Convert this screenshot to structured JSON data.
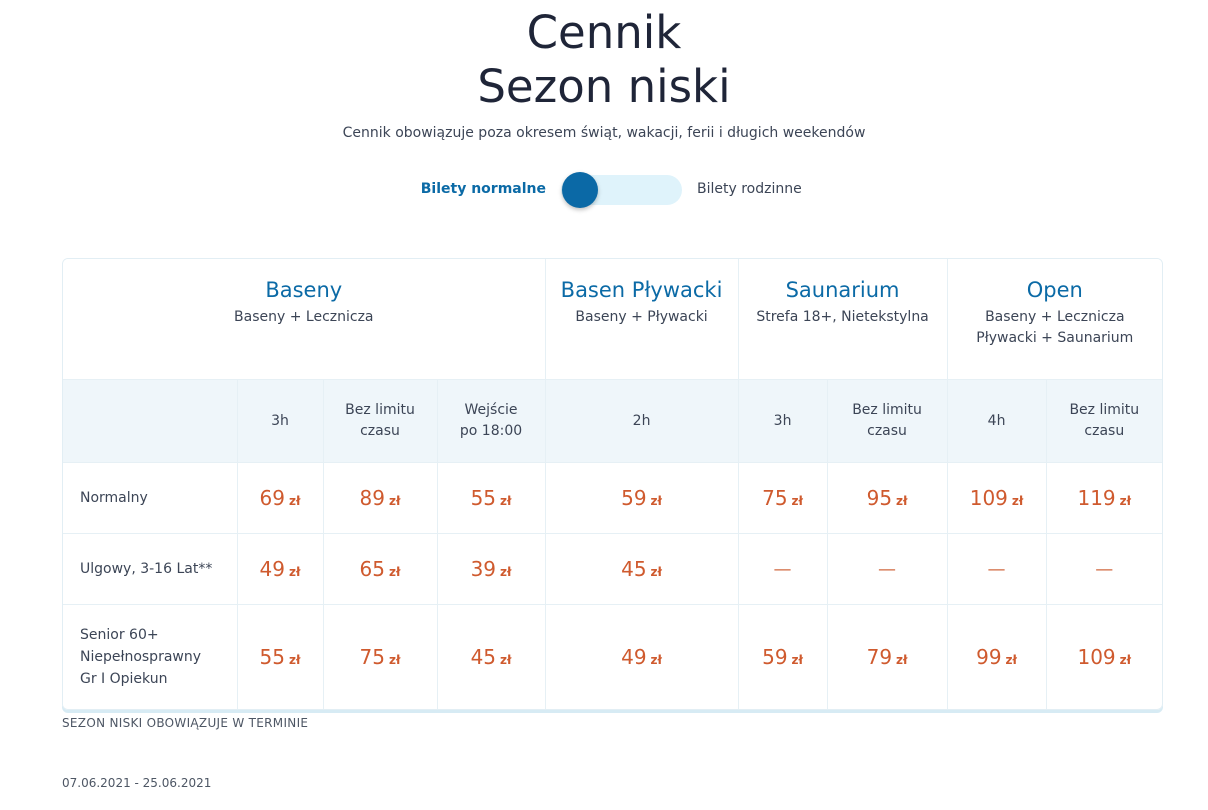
{
  "header": {
    "title_line1": "Cennik",
    "title_line2": "Sezon niski",
    "subtitle": "Cennik obowiązuje poza okresem świąt, wakacji, ferii i długich weekendów"
  },
  "toggle": {
    "left_label": "Bilety normalne",
    "right_label": "Bilety rodzinne",
    "state": "normalne"
  },
  "groups": [
    {
      "title": "Baseny",
      "sub1": "Baseny + Lecznicza",
      "sub2": ""
    },
    {
      "title": "Basen Pływacki",
      "sub1": "Baseny + Pływacki",
      "sub2": ""
    },
    {
      "title": "Saunarium",
      "sub1": "Strefa 18+, Nietekstylna",
      "sub2": ""
    },
    {
      "title": "Open",
      "sub1": "Baseny + Lecznicza",
      "sub2": "Pływacki + Saunarium"
    }
  ],
  "durations": [
    {
      "l1": "3h",
      "l2": ""
    },
    {
      "l1": "Bez limitu",
      "l2": "czasu"
    },
    {
      "l1": "Wejście",
      "l2": "po 18:00"
    },
    {
      "l1": "2h",
      "l2": ""
    },
    {
      "l1": "3h",
      "l2": ""
    },
    {
      "l1": "Bez limitu",
      "l2": "czasu"
    },
    {
      "l1": "4h",
      "l2": ""
    },
    {
      "l1": "Bez limitu",
      "l2": "czasu"
    }
  ],
  "currency": "zł",
  "rows": [
    {
      "label": [
        "Normalny"
      ],
      "prices": [
        "69",
        "89",
        "55",
        "59",
        "75",
        "95",
        "109",
        "119"
      ]
    },
    {
      "label": [
        "Ulgowy, 3-16 Lat**"
      ],
      "prices": [
        "49",
        "65",
        "39",
        "45",
        "—",
        "—",
        "—",
        "—"
      ]
    },
    {
      "label": [
        "Senior 60+",
        "Niepełnosprawny",
        "Gr I Opiekun"
      ],
      "prices": [
        "55",
        "75",
        "45",
        "49",
        "59",
        "79",
        "99",
        "109"
      ]
    }
  ],
  "footer": {
    "note": "SEZON NISKI OBOWIĄZUJE W TERMINIE",
    "dates": "07.06.2021 - 25.06.2021"
  }
}
